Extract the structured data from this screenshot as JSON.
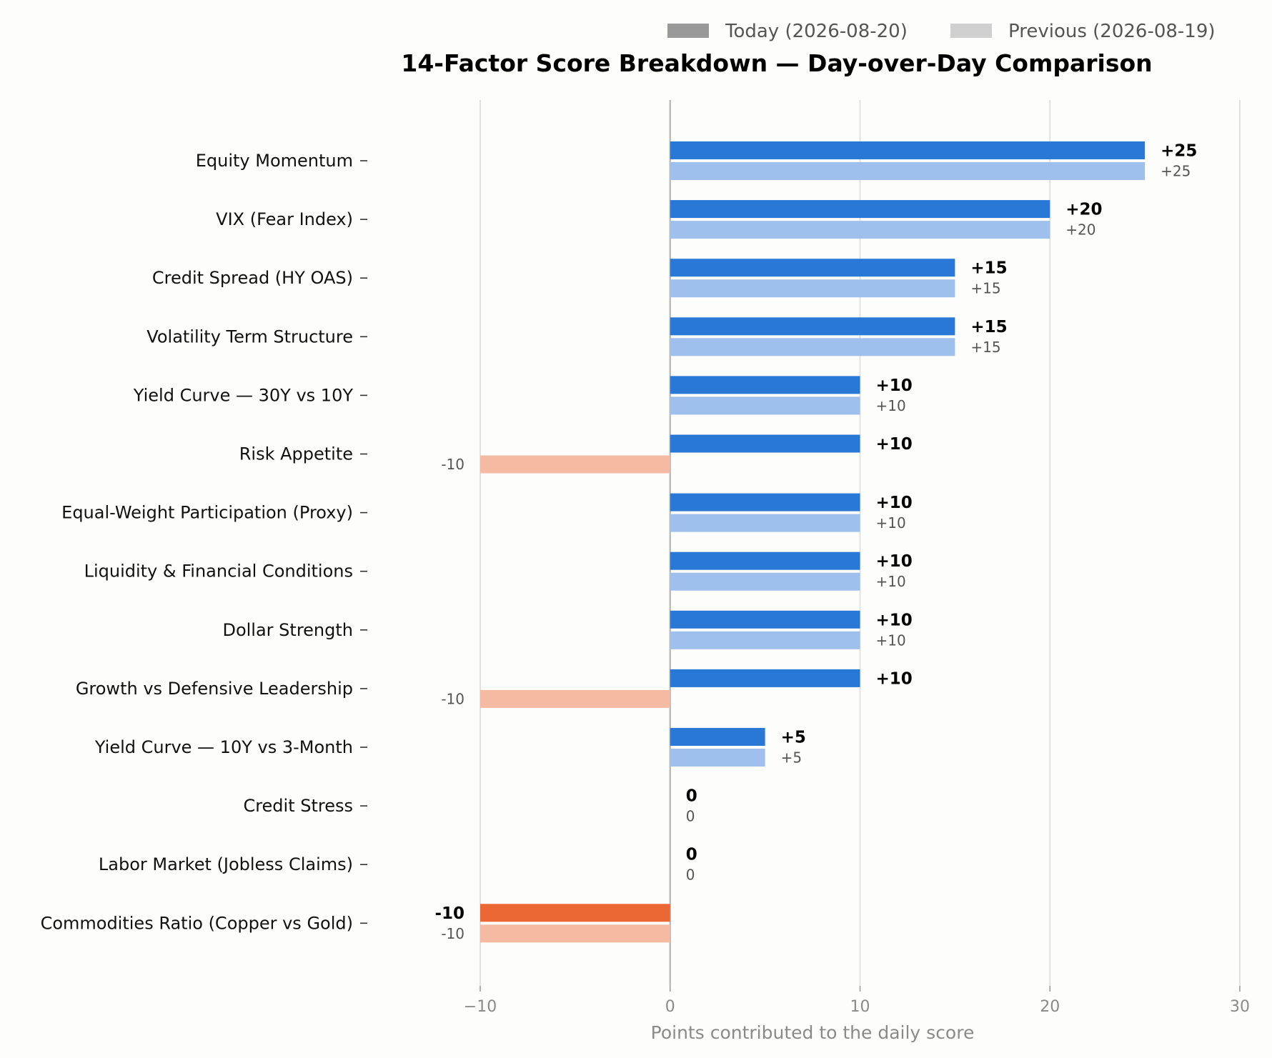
{
  "chart_data": {
    "type": "bar",
    "orientation": "horizontal",
    "title": "14-Factor Score Breakdown — Day-over-Day Comparison",
    "xlabel": "Points contributed to the daily score",
    "ylabel": "",
    "xlim": [
      -10,
      30
    ],
    "xticks": [
      -10,
      0,
      10,
      20,
      30
    ],
    "xtick_labels": [
      "−10",
      "0",
      "10",
      "20",
      "30"
    ],
    "grid": "vertical",
    "legend_position": "top-right",
    "legend": [
      {
        "label": "Today (2026-08-20)",
        "color": "#999999"
      },
      {
        "label": "Previous (2026-08-19)",
        "color": "#d0d0d0"
      }
    ],
    "colors": {
      "today_positive": "#2a78d6",
      "previous_positive": "#9fc0ec",
      "today_negative": "#eb6834",
      "previous_negative": "#f4baa2"
    },
    "categories": [
      "Equity Momentum",
      "VIX (Fear Index)",
      "Credit Spread (HY OAS)",
      "Volatility Term Structure",
      "Yield Curve — 30Y vs 10Y",
      "Risk Appetite",
      "Equal-Weight Participation (Proxy)",
      "Liquidity & Financial Conditions",
      "Dollar Strength",
      "Growth vs Defensive Leadership",
      "Yield Curve — 10Y vs 3-Month",
      "Credit Stress",
      "Labor Market (Jobless Claims)",
      "Commodities Ratio (Copper vs Gold)"
    ],
    "series": [
      {
        "name": "Today (2026-08-20)",
        "values": [
          25,
          20,
          15,
          15,
          10,
          10,
          10,
          10,
          10,
          10,
          5,
          0,
          0,
          -10
        ],
        "labels": [
          "+25",
          "+20",
          "+15",
          "+15",
          "+10",
          "+10",
          "+10",
          "+10",
          "+10",
          "+10",
          "+5",
          "0",
          "0",
          "-10"
        ]
      },
      {
        "name": "Previous (2026-08-19)",
        "values": [
          25,
          20,
          15,
          15,
          10,
          -10,
          10,
          10,
          10,
          -10,
          5,
          0,
          0,
          -10
        ],
        "labels": [
          "+25",
          "+20",
          "+15",
          "+15",
          "+10",
          "-10",
          "+10",
          "+10",
          "+10",
          "-10",
          "+5",
          "0",
          "0",
          "-10"
        ]
      }
    ]
  }
}
